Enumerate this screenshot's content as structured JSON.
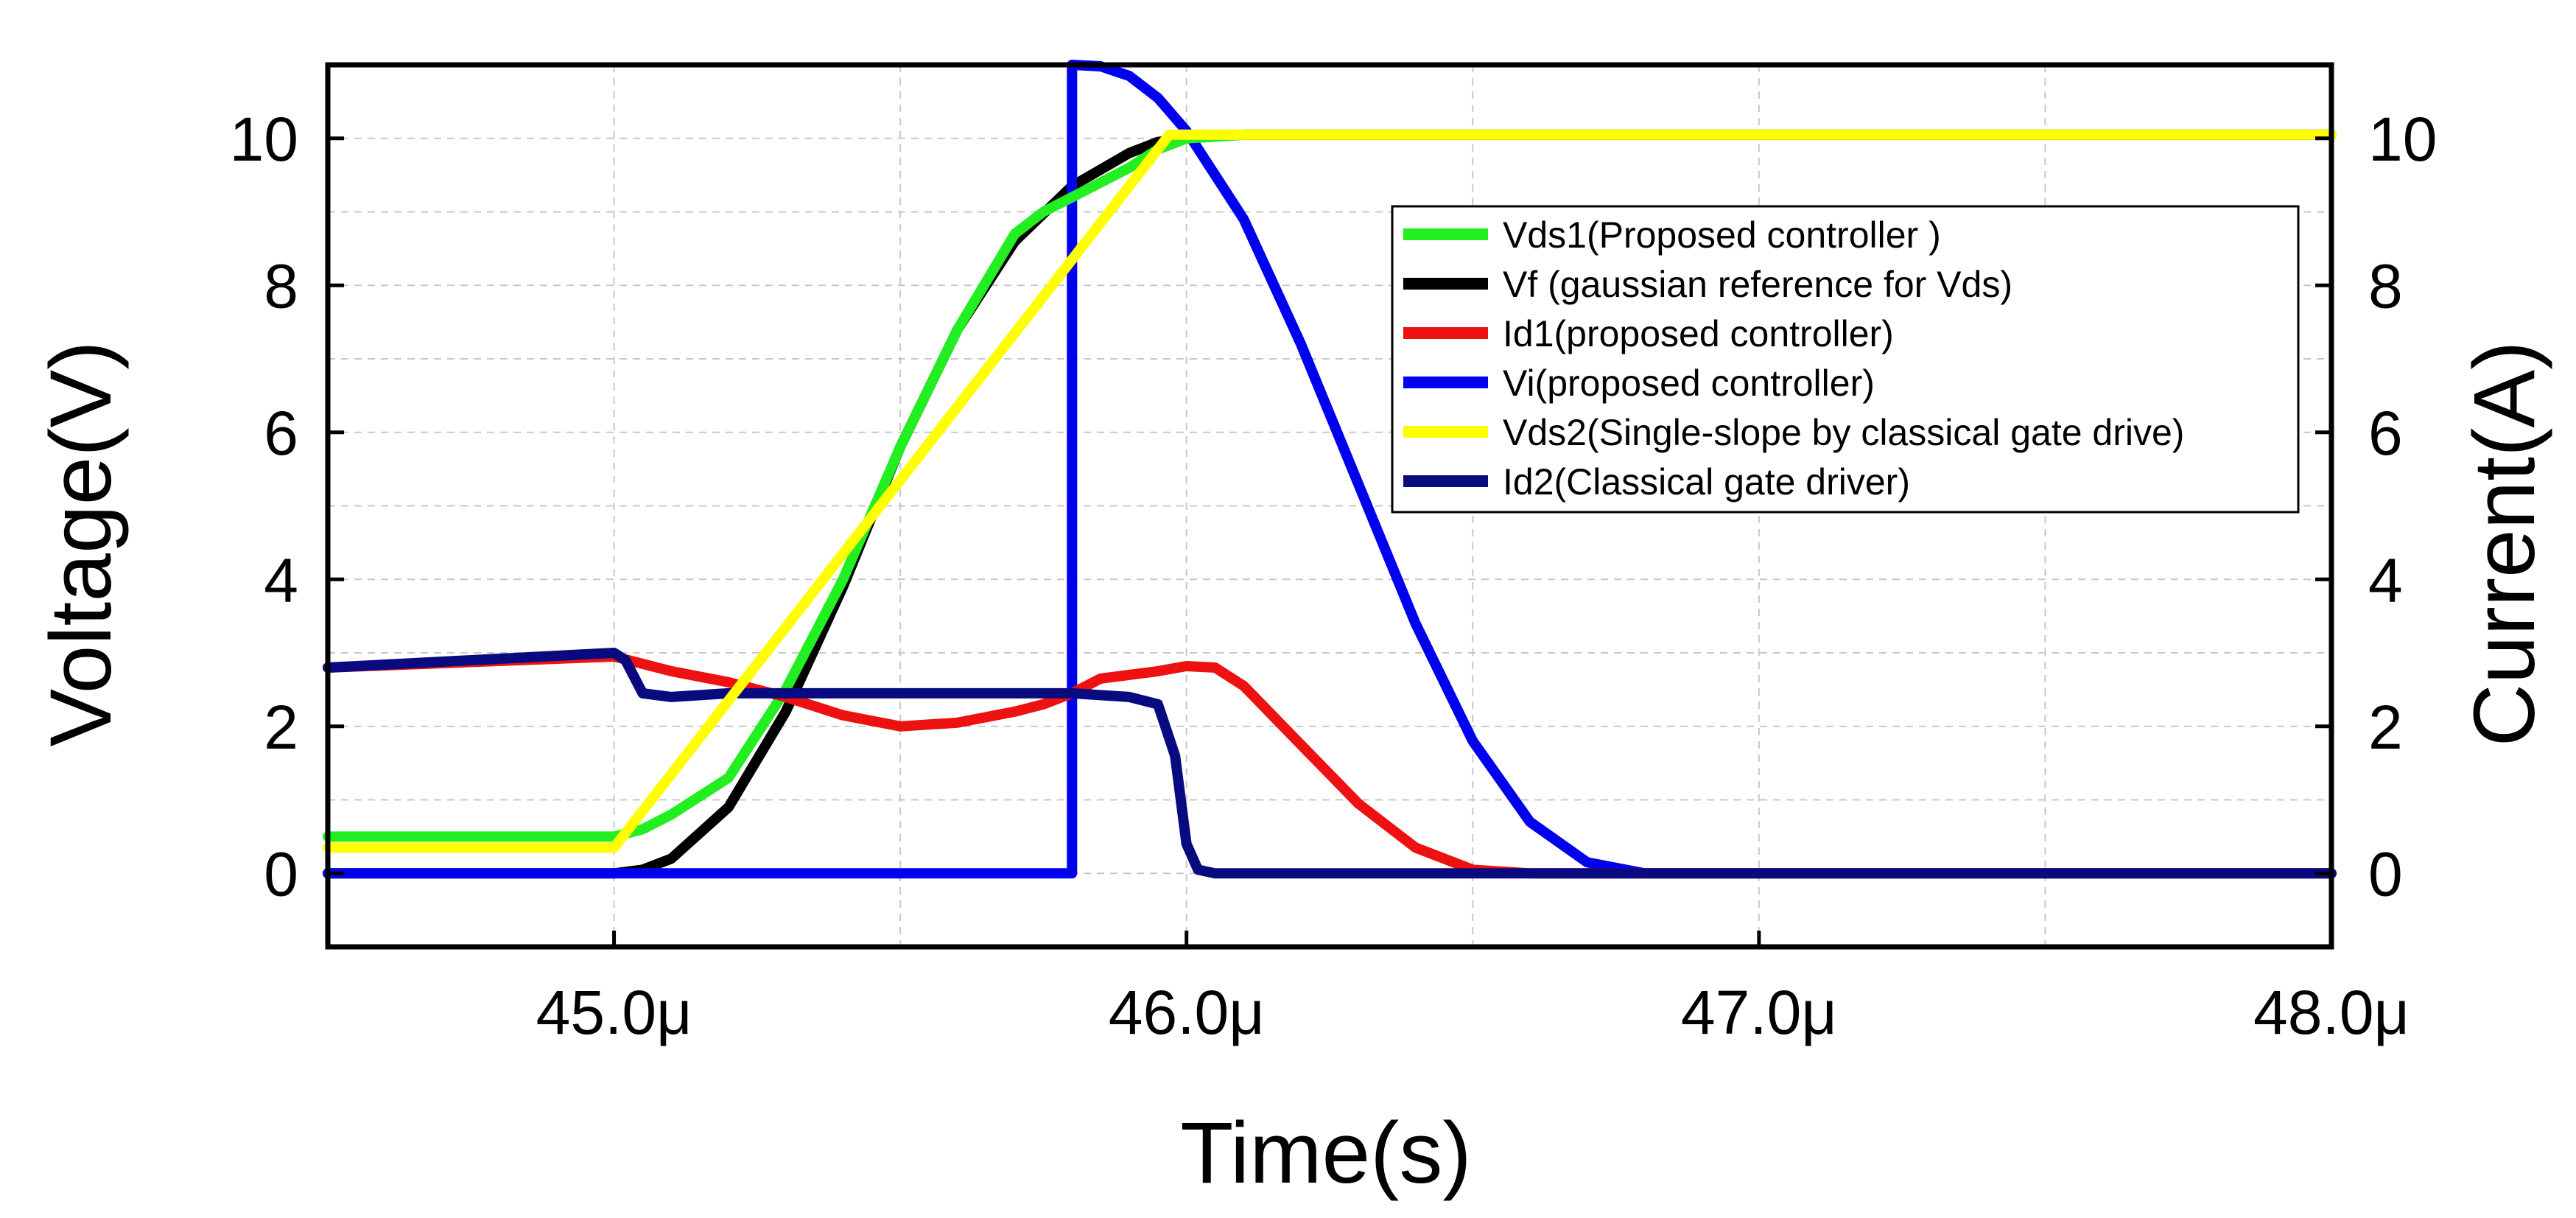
{
  "chart_data": {
    "type": "line",
    "xlabel": "Time(s)",
    "ylabel": "Voltage(V)",
    "y2label": "Current(A)",
    "xlim": [
      44.5,
      48.0
    ],
    "ylim": [
      -1,
      11
    ],
    "x_ticks": [
      45.0,
      46.0,
      47.0,
      48.0
    ],
    "x_tick_labels": [
      "45.0μ",
      "46.0μ",
      "47.0μ",
      "48.0μ"
    ],
    "y_ticks": [
      0,
      2,
      4,
      6,
      8,
      10
    ],
    "y_tick_labels": [
      "0",
      "2",
      "4",
      "6",
      "8",
      "10"
    ],
    "y2_ticks": [
      0,
      2,
      4,
      6,
      8,
      10
    ],
    "y2_tick_labels": [
      "0",
      "2",
      "4",
      "6",
      "8",
      "10"
    ],
    "grid": true,
    "legend_position": "upper-right",
    "series": [
      {
        "name": "Vf (gaussian reference for Vds)",
        "color": "#000000",
        "x": [
          44.5,
          45.0,
          45.05,
          45.1,
          45.2,
          45.3,
          45.4,
          45.5,
          45.6,
          45.7,
          45.8,
          45.9,
          45.95,
          46.0,
          46.1,
          48.0
        ],
        "y": [
          0,
          0,
          0.05,
          0.2,
          0.9,
          2.2,
          3.9,
          5.8,
          7.4,
          8.6,
          9.35,
          9.8,
          9.95,
          10.0,
          10.05,
          10.05
        ]
      },
      {
        "name": "Vi(proposed controller)",
        "color": "#0000ee",
        "x": [
          44.5,
          45.8,
          45.8,
          45.85,
          45.9,
          45.95,
          46.0,
          46.1,
          46.2,
          46.3,
          46.4,
          46.5,
          46.6,
          46.7,
          46.8,
          48.0
        ],
        "y": [
          0,
          0,
          11.0,
          10.98,
          10.85,
          10.55,
          10.1,
          8.9,
          7.2,
          5.3,
          3.4,
          1.8,
          0.7,
          0.15,
          0,
          0
        ]
      },
      {
        "name": "Vds1(Proposed controller )",
        "color": "#22ee22",
        "x": [
          44.5,
          45.0,
          45.05,
          45.1,
          45.2,
          45.3,
          45.4,
          45.5,
          45.6,
          45.7,
          45.75,
          45.8,
          45.9,
          45.95,
          46.0,
          46.1,
          48.0
        ],
        "y": [
          0.5,
          0.5,
          0.6,
          0.8,
          1.3,
          2.5,
          4.0,
          5.8,
          7.4,
          8.7,
          9.0,
          9.2,
          9.6,
          9.85,
          10.0,
          10.05,
          10.05
        ]
      },
      {
        "name": "Id1(proposed controller)",
        "color": "#ee1111",
        "x": [
          44.5,
          45.0,
          45.1,
          45.2,
          45.3,
          45.4,
          45.5,
          45.6,
          45.7,
          45.75,
          45.8,
          45.85,
          45.9,
          45.95,
          46.0,
          46.05,
          46.1,
          46.2,
          46.3,
          46.4,
          46.5,
          46.6,
          47.0,
          48.0
        ],
        "y": [
          2.8,
          2.95,
          2.75,
          2.6,
          2.4,
          2.15,
          2.0,
          2.05,
          2.2,
          2.3,
          2.45,
          2.65,
          2.7,
          2.75,
          2.82,
          2.8,
          2.55,
          1.75,
          0.95,
          0.35,
          0.05,
          0,
          0,
          0
        ]
      },
      {
        "name": "Id2(Classical gate driver)",
        "color": "#0a0a80",
        "x": [
          44.5,
          45.0,
          45.02,
          45.05,
          45.1,
          45.2,
          45.5,
          45.8,
          45.9,
          45.95,
          45.98,
          46.0,
          46.02,
          46.05,
          46.1,
          48.0
        ],
        "y": [
          2.8,
          3.0,
          2.9,
          2.45,
          2.4,
          2.45,
          2.45,
          2.45,
          2.4,
          2.3,
          1.6,
          0.4,
          0.05,
          0,
          0,
          0
        ]
      },
      {
        "name": "Vds2(Single-slope by classical gate drive)",
        "color": "#ffff00",
        "x": [
          44.5,
          45.0,
          45.97,
          48.0
        ],
        "y": [
          0.35,
          0.35,
          10.05,
          10.05
        ]
      }
    ],
    "legend_order": [
      "Vds1(Proposed controller )",
      "Vf (gaussian reference for Vds)",
      "Id1(proposed controller)",
      "Vi(proposed controller)",
      "Vds2(Single-slope by classical gate drive)",
      "Id2(Classical gate driver)"
    ]
  }
}
